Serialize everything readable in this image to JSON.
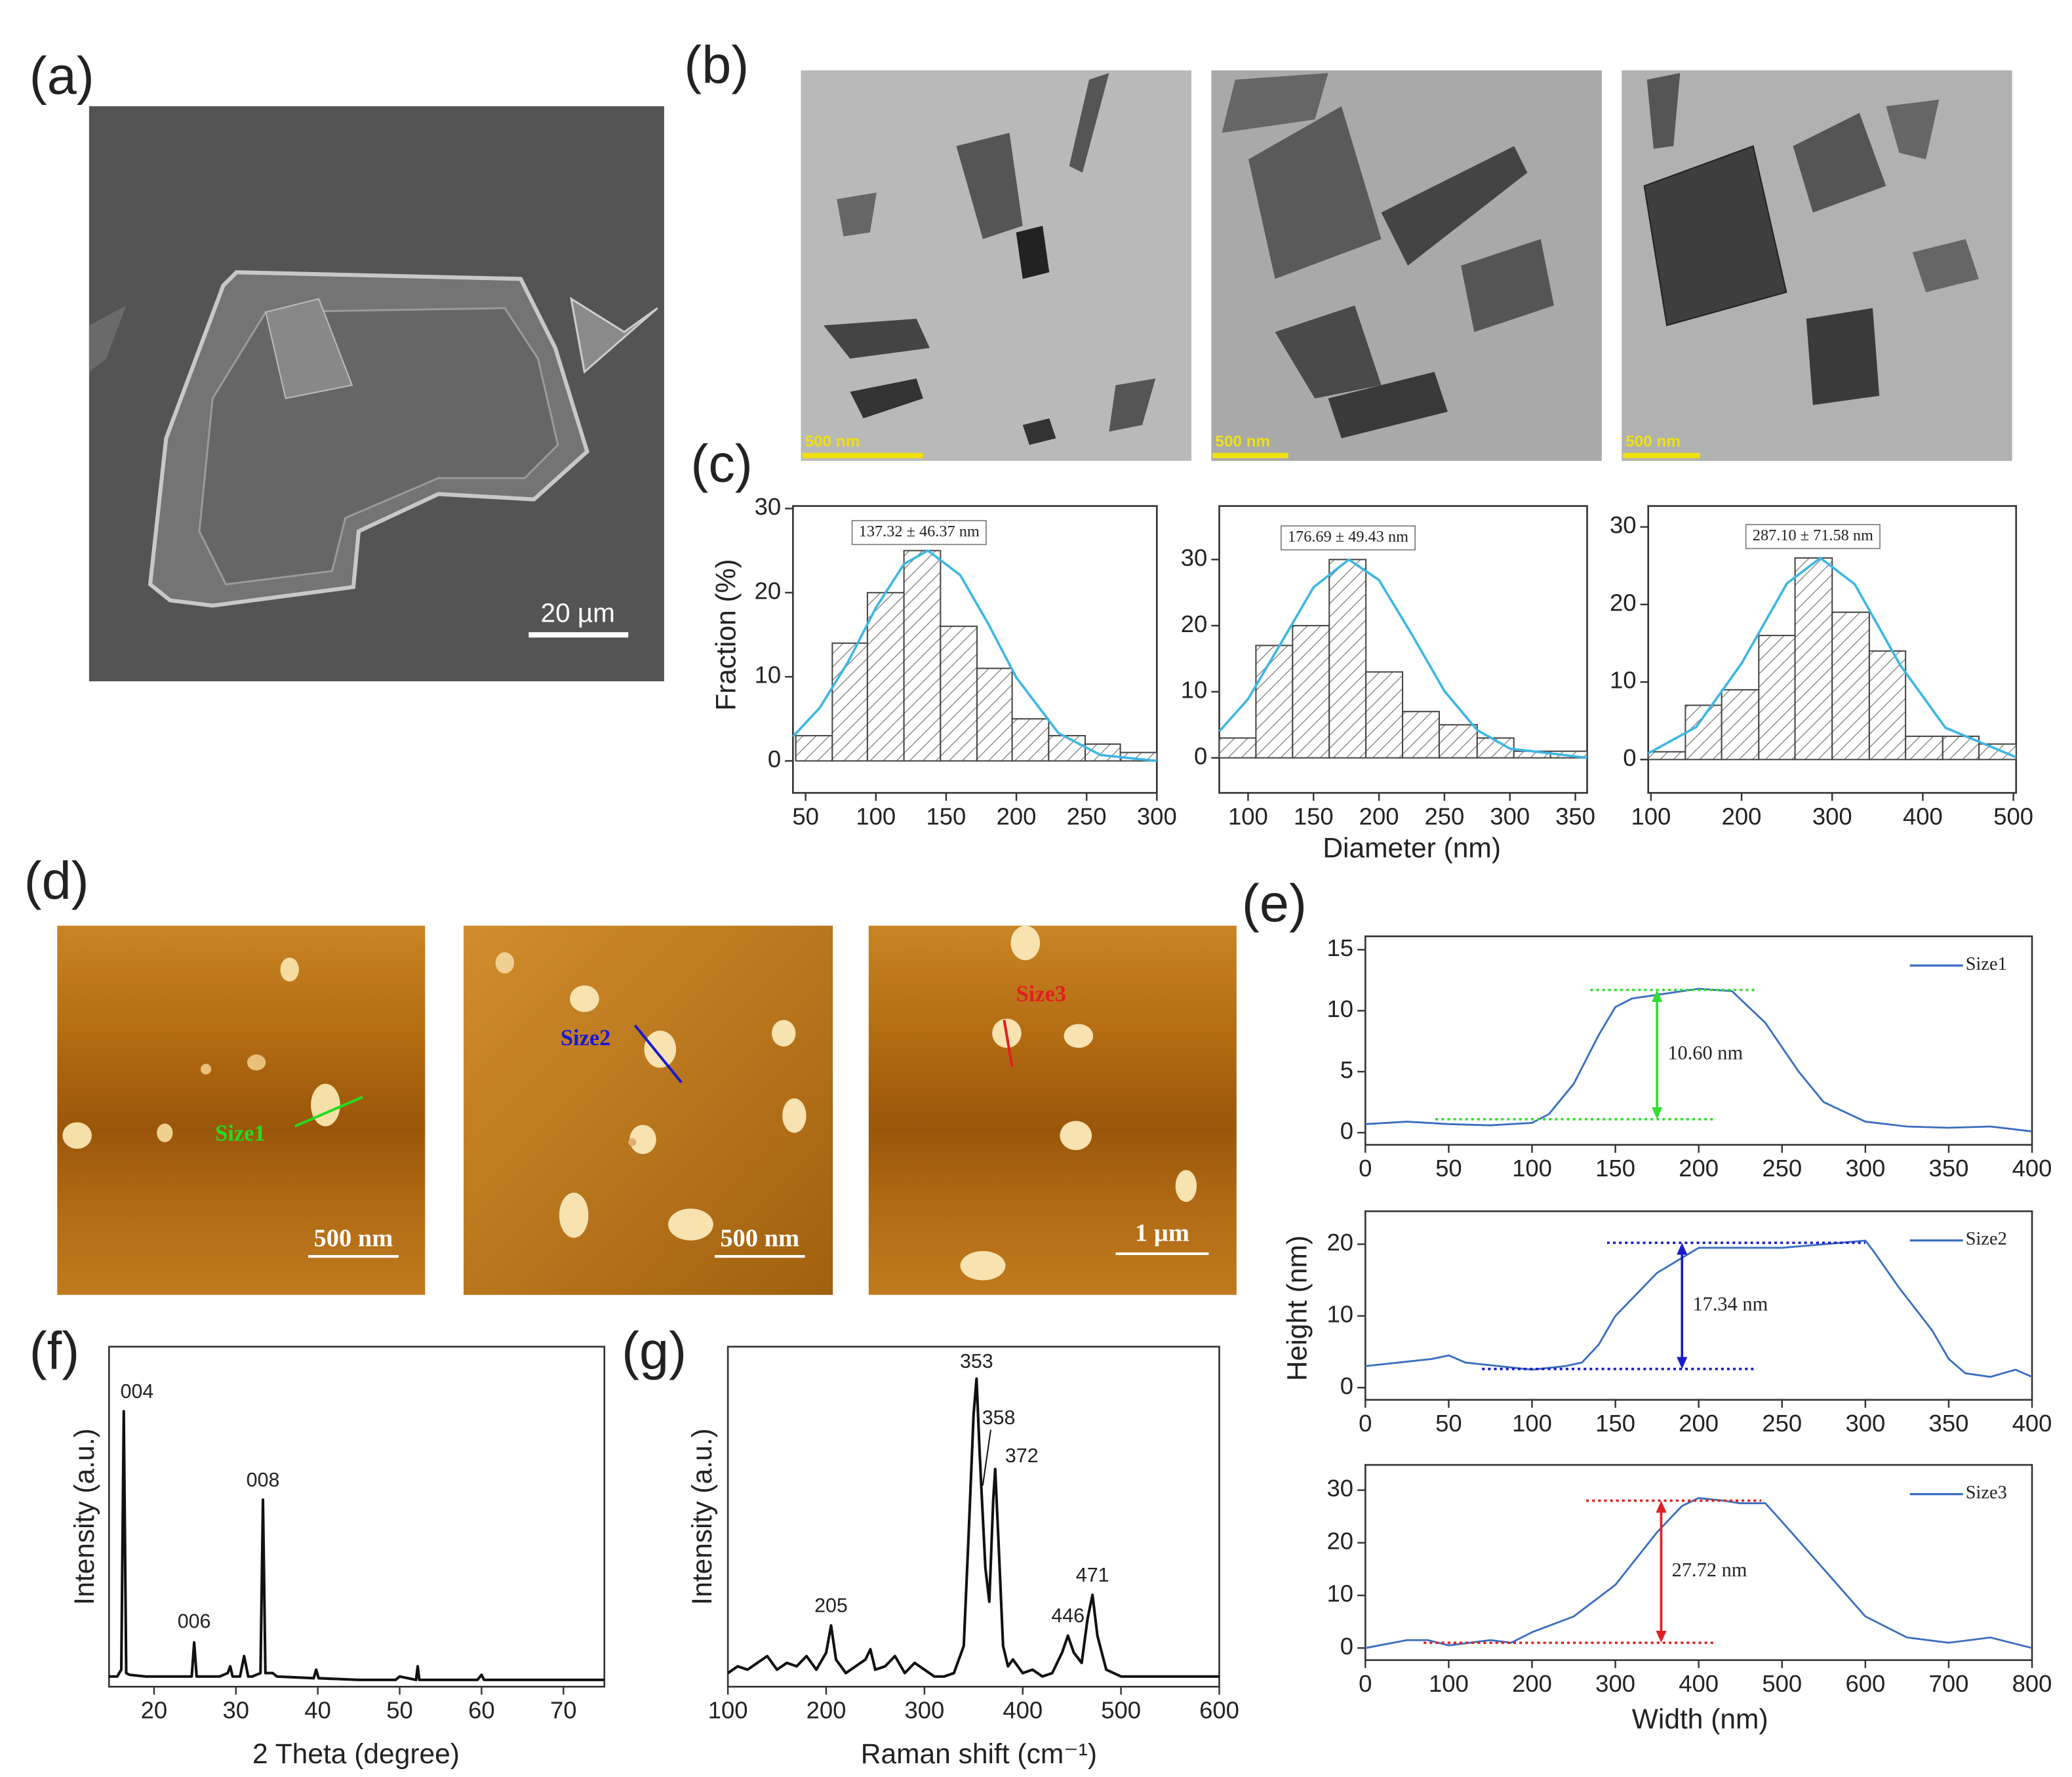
{
  "panel_labels": [
    "(a)",
    "(b)",
    "(c)",
    "(d)",
    "(e)",
    "(f)",
    "(g)"
  ],
  "sem": {
    "scale_bar": "20 µm"
  },
  "tem": [
    {
      "scale_bar": "500 nm"
    },
    {
      "scale_bar": "500 nm"
    },
    {
      "scale_bar": "500 nm"
    }
  ],
  "afm": [
    {
      "scale_bar": "500 nm",
      "profile": "Size1"
    },
    {
      "scale_bar": "500 nm",
      "profile": "Size2"
    },
    {
      "scale_bar": "1 µm",
      "profile": "Size3"
    }
  ],
  "chart_data": [
    {
      "type": "histogram",
      "ylabel": "Fraction (%)",
      "annotation": "137.32 ± 46.37 nm",
      "bins": [
        43,
        69,
        94,
        120,
        146,
        172,
        197,
        223,
        249,
        274,
        300
      ],
      "values": [
        3,
        14,
        20,
        25,
        16,
        11,
        5,
        3,
        2,
        1
      ],
      "color": "#444444",
      "xlim": [
        41,
        300
      ],
      "ylim": [
        -3.8,
        30.3
      ],
      "xticks": [
        50,
        100,
        150,
        200,
        250,
        300
      ],
      "yticks": [
        0,
        10,
        20,
        30
      ],
      "fit": {
        "color": "#3db7e4",
        "x": [
          41,
          60,
          80,
          100,
          120,
          137,
          160,
          180,
          200,
          230,
          260,
          300
        ],
        "values": [
          2.9,
          6.3,
          11.7,
          18.2,
          23.4,
          25,
          22.1,
          16.3,
          9.9,
          3.3,
          0.7,
          0
        ]
      }
    },
    {
      "type": "histogram",
      "xlabel": "Diameter (nm)",
      "annotation": "176.69 ± 49.43 nm",
      "bins": [
        78,
        106,
        134,
        162,
        190,
        218,
        246,
        275,
        303,
        331,
        359
      ],
      "values": [
        3,
        17,
        20,
        30,
        13,
        7,
        5,
        3,
        1,
        1
      ],
      "color": "#444444",
      "xlim": [
        78,
        359
      ],
      "ylim": [
        -5.3,
        38.1
      ],
      "xticks": [
        100,
        150,
        200,
        250,
        300,
        350
      ],
      "yticks": [
        0,
        10,
        20,
        30
      ],
      "fit": {
        "color": "#3db7e4",
        "x": [
          78,
          100,
          125,
          150,
          177,
          200,
          225,
          250,
          275,
          300,
          359
        ],
        "values": [
          4.0,
          8.9,
          17.3,
          25.8,
          30,
          26.9,
          18.7,
          10.1,
          4.2,
          1.4,
          0
        ]
      }
    },
    {
      "type": "histogram",
      "annotation": "287.10 ± 71.58 nm",
      "bins": [
        97,
        138,
        178,
        219,
        259,
        300,
        341,
        381,
        422,
        462,
        503
      ],
      "values": [
        1,
        7,
        9,
        16,
        26,
        19,
        14,
        3,
        3,
        2
      ],
      "color": "#444444",
      "xlim": [
        97,
        503
      ],
      "ylim": [
        -4.3,
        32.7
      ],
      "xticks": [
        100,
        200,
        300,
        400,
        500
      ],
      "yticks": [
        0,
        10,
        20,
        30
      ],
      "fit": {
        "color": "#3db7e4",
        "x": [
          97,
          150,
          200,
          250,
          287,
          325,
          375,
          425,
          503
        ],
        "values": [
          0.8,
          4.2,
          12.4,
          22.7,
          26,
          22.6,
          12.2,
          4.1,
          0.3
        ]
      }
    },
    {
      "type": "line",
      "legend": "upper right",
      "x": [
        0,
        25,
        50,
        75,
        100,
        110,
        125,
        140,
        150,
        160,
        175,
        200,
        220,
        240,
        250,
        260,
        275,
        300,
        325,
        350,
        375,
        400
      ],
      "series": [
        {
          "name": "Size1",
          "color": "#3a6ebf",
          "values": [
            0.7,
            0.9,
            0.7,
            0.6,
            0.8,
            1.5,
            4,
            8,
            10.3,
            11,
            11.3,
            11.8,
            11.6,
            9,
            7,
            5,
            2.5,
            0.9,
            0.5,
            0.4,
            0.5,
            0.1
          ]
        }
      ],
      "xlim": [
        0,
        400
      ],
      "ylim": [
        -1,
        16.1
      ],
      "xticks": [
        0,
        50,
        100,
        150,
        200,
        250,
        300,
        350,
        400
      ],
      "yticks": [
        0,
        5,
        10,
        15
      ],
      "measure": {
        "label": "10.60 nm",
        "color": "#33dd33",
        "x": 175,
        "low": 1.1,
        "high": 11.7,
        "low_x": [
          42,
          210
        ],
        "high_x": [
          135,
          235
        ]
      }
    },
    {
      "type": "line",
      "legend": "upper right",
      "ylabel": "Height (nm)",
      "x": [
        0,
        20,
        40,
        50,
        60,
        80,
        100,
        120,
        130,
        140,
        150,
        175,
        200,
        225,
        250,
        275,
        300,
        305,
        320,
        340,
        350,
        360,
        375,
        390,
        400
      ],
      "series": [
        {
          "name": "Size2",
          "color": "#3a6ebf",
          "values": [
            3,
            3.5,
            4,
            4.5,
            3.5,
            3,
            2.5,
            3,
            3.5,
            6,
            10,
            16,
            19.5,
            19.5,
            19.5,
            20,
            20.5,
            19,
            14,
            8,
            4,
            2,
            1.5,
            2.5,
            1.5
          ]
        }
      ],
      "xlim": [
        0,
        400
      ],
      "ylim": [
        -1.7,
        24.6
      ],
      "xticks": [
        0,
        50,
        100,
        150,
        200,
        250,
        300,
        350,
        400
      ],
      "yticks": [
        0,
        10,
        20
      ],
      "measure": {
        "label": "17.34 nm",
        "color": "#1a1acc",
        "x": 190,
        "low": 2.6,
        "high": 20.2,
        "low_x": [
          70,
          235
        ],
        "high_x": [
          145,
          300
        ]
      }
    },
    {
      "type": "line",
      "legend": "upper right",
      "xlabel": "Width (nm)",
      "x": [
        0,
        50,
        75,
        100,
        150,
        175,
        200,
        250,
        300,
        350,
        380,
        400,
        430,
        450,
        480,
        500,
        550,
        600,
        650,
        700,
        750,
        800
      ],
      "series": [
        {
          "name": "Size3",
          "color": "#3a6ebf",
          "values": [
            0,
            1.5,
            1.5,
            0.5,
            1.5,
            1,
            3,
            6,
            12,
            22,
            27,
            28.5,
            28,
            27.5,
            27.5,
            24,
            15,
            6,
            2,
            1,
            2,
            0
          ]
        }
      ],
      "xlim": [
        0,
        800
      ],
      "ylim": [
        -2.3,
        34.8
      ],
      "xticks": [
        0,
        100,
        200,
        300,
        400,
        500,
        600,
        700,
        800
      ],
      "yticks": [
        0,
        10,
        20,
        30
      ],
      "measure": {
        "label": "27.72 nm",
        "color": "#e02020",
        "x": 355,
        "low": 1,
        "high": 28,
        "low_x": [
          70,
          420
        ],
        "high_x": [
          265,
          475
        ]
      }
    },
    {
      "type": "line",
      "xlabel": "2 Theta (degree)",
      "ylabel": "Intensity (a.u.)",
      "x": [
        14.5,
        15.5,
        16.0,
        16.3,
        16.6,
        17,
        19,
        24.6,
        24.9,
        25.2,
        28,
        29,
        29.3,
        29.6,
        30.5,
        31,
        31.5,
        32,
        33,
        33.3,
        33.6,
        34.5,
        35,
        39.5,
        39.8,
        40.1,
        45,
        49.5,
        50,
        52,
        52.2,
        52.4,
        57,
        59.5,
        60,
        60.3,
        65,
        75
      ],
      "series": [
        {
          "color": "#111111",
          "values": [
            3,
            3,
            5,
            81,
            4,
            3.5,
            3,
            3,
            13,
            3,
            3,
            4,
            6,
            3,
            3,
            9,
            3,
            3,
            4,
            55,
            4,
            4,
            3,
            2.5,
            5,
            2.5,
            2,
            2,
            3,
            2,
            6,
            2,
            2,
            2,
            3.5,
            2,
            2,
            2
          ]
        }
      ],
      "xlim": [
        14.5,
        75
      ],
      "ylim": [
        0,
        100
      ],
      "xticks": [
        20,
        30,
        40,
        50,
        60,
        70
      ],
      "peaks": [
        {
          "label": "004",
          "x": 16.3,
          "y": 81
        },
        {
          "label": "006",
          "x": 24.9,
          "y": 13
        },
        {
          "label": "008",
          "x": 33.3,
          "y": 55
        }
      ]
    },
    {
      "type": "line",
      "xlabel": "Raman shift (cm⁻¹)",
      "ylabel": "Intensity (a.u.)",
      "x": [
        100,
        110,
        120,
        130,
        140,
        150,
        160,
        170,
        180,
        190,
        200,
        205,
        210,
        220,
        230,
        240,
        245,
        250,
        260,
        270,
        280,
        290,
        300,
        310,
        320,
        330,
        340,
        345,
        350,
        353,
        356,
        358,
        362,
        366,
        370,
        372,
        375,
        380,
        385,
        390,
        400,
        410,
        420,
        430,
        440,
        446,
        452,
        460,
        466,
        471,
        476,
        485,
        500,
        550,
        600
      ],
      "series": [
        {
          "color": "#111111",
          "values": [
            4,
            6,
            5,
            7,
            9,
            5,
            7,
            6,
            9,
            5,
            10,
            18,
            8,
            4,
            6,
            8,
            11,
            5,
            6,
            9,
            4,
            7,
            5,
            3,
            3,
            4,
            12,
            45,
            80,
            90.6,
            70,
            58,
            35,
            25,
            55,
            64,
            45,
            12,
            6,
            8,
            4,
            5,
            3,
            4,
            10,
            15,
            10,
            7,
            20,
            27,
            15,
            5,
            3,
            3,
            3
          ]
        }
      ],
      "xlim": [
        100,
        600
      ],
      "ylim": [
        0,
        100
      ],
      "xticks": [
        100,
        200,
        300,
        400,
        500,
        600
      ],
      "peaks": [
        {
          "x": 205,
          "y": 18
        },
        {
          "x": 353,
          "y": 90.6
        },
        {
          "x": 358,
          "y": 58
        },
        {
          "x": 372,
          "y": 64
        },
        {
          "x": 446,
          "y": 15
        },
        {
          "x": 471,
          "y": 27
        }
      ]
    }
  ]
}
